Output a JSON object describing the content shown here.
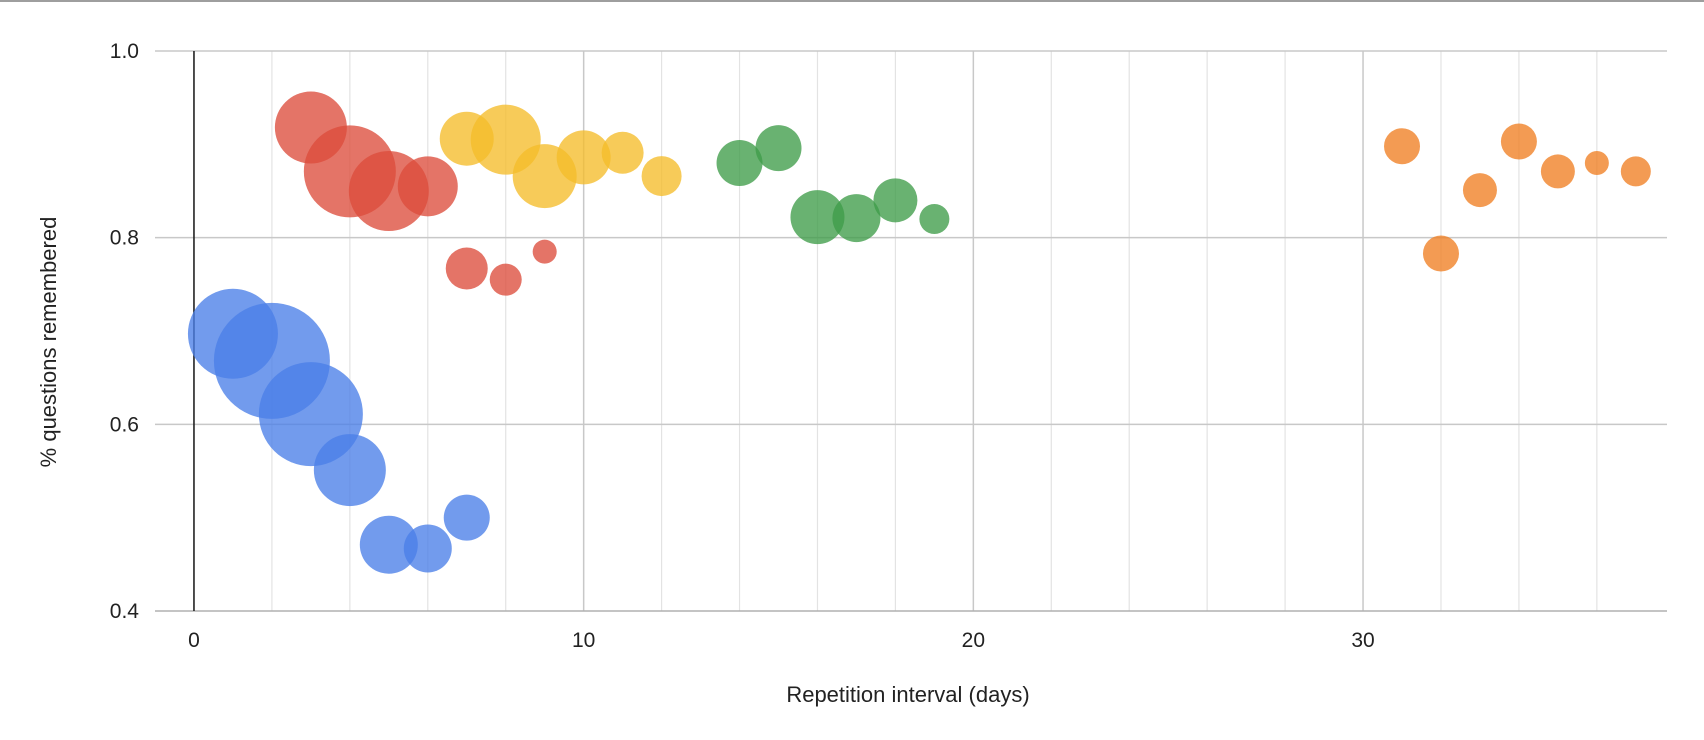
{
  "chart_data": {
    "type": "bubble",
    "xlabel": "Repetition interval (days)",
    "ylabel": "% questions remembered",
    "xlim": [
      -1,
      37.8
    ],
    "ylim": [
      0.4,
      1.0
    ],
    "x_ticks": [
      0,
      10,
      20,
      30
    ],
    "y_ticks": [
      0.4,
      0.6,
      0.8,
      1.0
    ],
    "y_tick_labels": [
      "0.4",
      "0.6",
      "0.8",
      "1.0"
    ],
    "minor_x_gridlines": [
      2,
      4,
      6,
      8,
      12,
      14,
      16,
      18,
      22,
      24,
      26,
      28,
      32,
      34,
      36
    ],
    "grid": true,
    "legend": "none",
    "size_unit": "relative bubble size",
    "series": [
      {
        "color": "#4a7fe8",
        "points": [
          {
            "x": 1,
            "y": 0.697,
            "size": 45
          },
          {
            "x": 2,
            "y": 0.668,
            "size": 58
          },
          {
            "x": 3,
            "y": 0.611,
            "size": 52
          },
          {
            "x": 4,
            "y": 0.551,
            "size": 36
          },
          {
            "x": 5,
            "y": 0.471,
            "size": 29
          },
          {
            "x": 6,
            "y": 0.467,
            "size": 24
          },
          {
            "x": 7,
            "y": 0.5,
            "size": 23
          }
        ]
      },
      {
        "color": "#dd4d3c",
        "points": [
          {
            "x": 3,
            "y": 0.918,
            "size": 36
          },
          {
            "x": 4,
            "y": 0.871,
            "size": 46
          },
          {
            "x": 5,
            "y": 0.85,
            "size": 40
          },
          {
            "x": 6,
            "y": 0.855,
            "size": 30
          },
          {
            "x": 7,
            "y": 0.767,
            "size": 21
          },
          {
            "x": 8,
            "y": 0.755,
            "size": 16
          },
          {
            "x": 9,
            "y": 0.785,
            "size": 12
          }
        ]
      },
      {
        "color": "#f5bc2a",
        "points": [
          {
            "x": 7,
            "y": 0.906,
            "size": 27
          },
          {
            "x": 8,
            "y": 0.905,
            "size": 35
          },
          {
            "x": 9,
            "y": 0.866,
            "size": 32
          },
          {
            "x": 10,
            "y": 0.886,
            "size": 27
          },
          {
            "x": 11,
            "y": 0.891,
            "size": 21
          },
          {
            "x": 12,
            "y": 0.866,
            "size": 20
          }
        ]
      },
      {
        "color": "#3f9c49",
        "points": [
          {
            "x": 14,
            "y": 0.88,
            "size": 23
          },
          {
            "x": 15,
            "y": 0.896,
            "size": 23
          },
          {
            "x": 16,
            "y": 0.822,
            "size": 27
          },
          {
            "x": 17,
            "y": 0.821,
            "size": 24
          },
          {
            "x": 18,
            "y": 0.84,
            "size": 22
          },
          {
            "x": 19,
            "y": 0.82,
            "size": 15
          }
        ]
      },
      {
        "color": "#f07f22",
        "points": [
          {
            "x": 31,
            "y": 0.898,
            "size": 18
          },
          {
            "x": 32,
            "y": 0.783,
            "size": 18
          },
          {
            "x": 33,
            "y": 0.851,
            "size": 17
          },
          {
            "x": 34,
            "y": 0.903,
            "size": 18
          },
          {
            "x": 35,
            "y": 0.871,
            "size": 17
          },
          {
            "x": 36,
            "y": 0.88,
            "size": 12
          },
          {
            "x": 37,
            "y": 0.871,
            "size": 15
          }
        ]
      }
    ]
  }
}
